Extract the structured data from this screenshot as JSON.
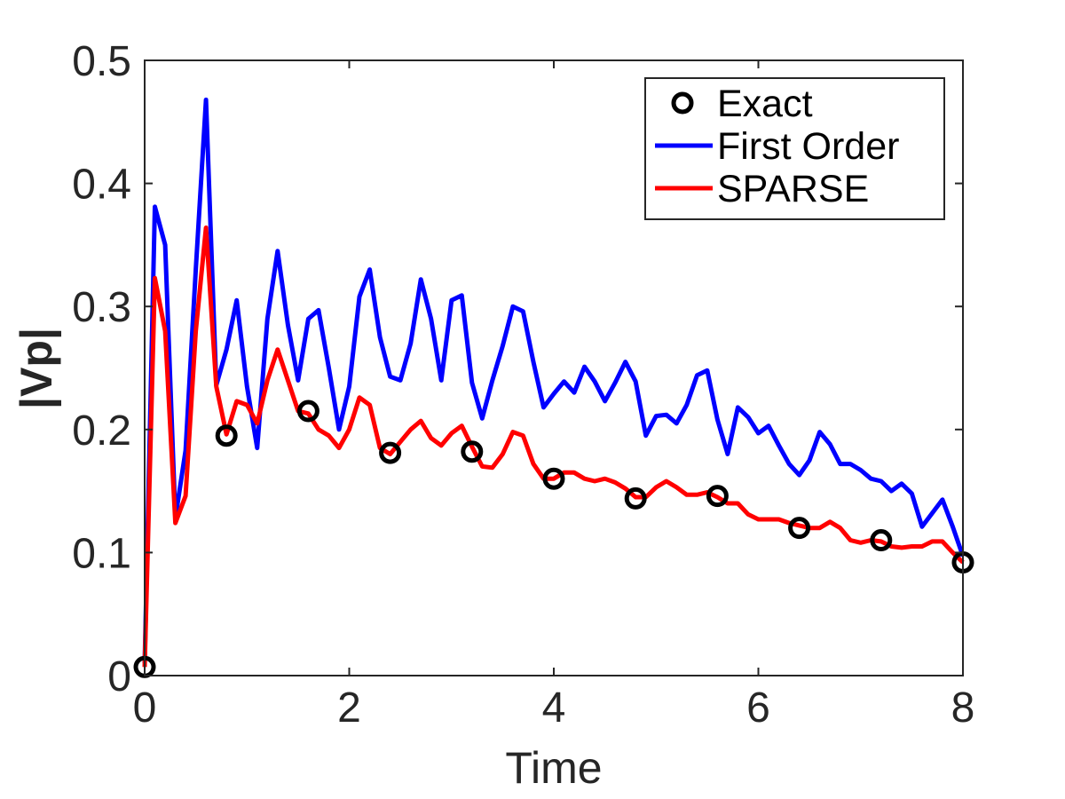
{
  "chart_data": {
    "type": "line",
    "xlabel": "Time",
    "ylabel": "|Vp|",
    "xlim": [
      0,
      8
    ],
    "ylim": [
      0,
      0.5
    ],
    "xticks": [
      0,
      2,
      4,
      6,
      8
    ],
    "yticks": [
      0,
      0.1,
      0.2,
      0.3,
      0.4,
      0.5
    ],
    "xtick_labels": [
      "0",
      "2",
      "4",
      "6",
      "8"
    ],
    "ytick_labels": [
      "0",
      "0.1",
      "0.2",
      "0.3",
      "0.4",
      "0.5"
    ],
    "grid": false,
    "legend_position": "top-right",
    "series": [
      {
        "name": "Exact",
        "style": "markers",
        "color": "#000000",
        "x": [
          0,
          0.8,
          1.6,
          2.4,
          3.2,
          4.0,
          4.8,
          5.6,
          6.4,
          7.2,
          8.0
        ],
        "y": [
          0.007,
          0.195,
          0.215,
          0.181,
          0.182,
          0.16,
          0.144,
          0.146,
          0.12,
          0.11,
          0.092
        ]
      },
      {
        "name": "First Order",
        "style": "line",
        "color": "#0000ff",
        "x": [
          0,
          0.1,
          0.2,
          0.3,
          0.4,
          0.5,
          0.6,
          0.7,
          0.8,
          0.9,
          1.0,
          1.1,
          1.2,
          1.3,
          1.4,
          1.5,
          1.6,
          1.7,
          1.8,
          1.9,
          2.0,
          2.1,
          2.2,
          2.3,
          2.4,
          2.5,
          2.6,
          2.7,
          2.8,
          2.9,
          3.0,
          3.1,
          3.2,
          3.3,
          3.4,
          3.5,
          3.6,
          3.7,
          3.8,
          3.9,
          4.0,
          4.1,
          4.2,
          4.3,
          4.4,
          4.5,
          4.6,
          4.7,
          4.8,
          4.9,
          5.0,
          5.1,
          5.2,
          5.3,
          5.4,
          5.5,
          5.6,
          5.7,
          5.8,
          5.9,
          6.0,
          6.1,
          6.2,
          6.3,
          6.4,
          6.5,
          6.6,
          6.7,
          6.8,
          6.9,
          7.0,
          7.1,
          7.2,
          7.3,
          7.4,
          7.5,
          7.6,
          7.7,
          7.8,
          7.9,
          8.0
        ],
        "y": [
          0.01,
          0.381,
          0.35,
          0.128,
          0.183,
          0.33,
          0.468,
          0.236,
          0.265,
          0.305,
          0.235,
          0.185,
          0.29,
          0.345,
          0.285,
          0.24,
          0.29,
          0.297,
          0.25,
          0.2,
          0.235,
          0.308,
          0.33,
          0.275,
          0.243,
          0.24,
          0.27,
          0.322,
          0.29,
          0.24,
          0.305,
          0.309,
          0.238,
          0.209,
          0.24,
          0.268,
          0.3,
          0.296,
          0.255,
          0.218,
          0.229,
          0.239,
          0.23,
          0.251,
          0.239,
          0.223,
          0.238,
          0.255,
          0.239,
          0.195,
          0.211,
          0.212,
          0.205,
          0.22,
          0.244,
          0.248,
          0.208,
          0.18,
          0.218,
          0.21,
          0.197,
          0.203,
          0.187,
          0.172,
          0.163,
          0.175,
          0.198,
          0.188,
          0.172,
          0.172,
          0.167,
          0.16,
          0.158,
          0.15,
          0.156,
          0.148,
          0.121,
          0.132,
          0.143,
          0.121,
          0.097
        ]
      },
      {
        "name": "SPARSE",
        "style": "line",
        "color": "#ff0000",
        "x": [
          0,
          0.1,
          0.2,
          0.3,
          0.4,
          0.5,
          0.6,
          0.7,
          0.8,
          0.9,
          1.0,
          1.1,
          1.2,
          1.3,
          1.4,
          1.5,
          1.6,
          1.7,
          1.8,
          1.9,
          2.0,
          2.1,
          2.2,
          2.3,
          2.4,
          2.5,
          2.6,
          2.7,
          2.8,
          2.9,
          3.0,
          3.1,
          3.2,
          3.3,
          3.4,
          3.5,
          3.6,
          3.7,
          3.8,
          3.9,
          4.0,
          4.1,
          4.2,
          4.3,
          4.4,
          4.5,
          4.6,
          4.7,
          4.8,
          4.9,
          5.0,
          5.1,
          5.2,
          5.3,
          5.4,
          5.5,
          5.6,
          5.7,
          5.8,
          5.9,
          6.0,
          6.1,
          6.2,
          6.3,
          6.4,
          6.5,
          6.6,
          6.7,
          6.8,
          6.9,
          7.0,
          7.1,
          7.2,
          7.3,
          7.4,
          7.5,
          7.6,
          7.7,
          7.8,
          7.9,
          8.0
        ],
        "y": [
          0.007,
          0.323,
          0.28,
          0.124,
          0.146,
          0.28,
          0.364,
          0.235,
          0.196,
          0.223,
          0.22,
          0.205,
          0.24,
          0.265,
          0.24,
          0.215,
          0.213,
          0.2,
          0.195,
          0.185,
          0.2,
          0.226,
          0.22,
          0.185,
          0.18,
          0.19,
          0.2,
          0.207,
          0.193,
          0.187,
          0.197,
          0.203,
          0.186,
          0.17,
          0.169,
          0.18,
          0.198,
          0.195,
          0.172,
          0.16,
          0.16,
          0.165,
          0.165,
          0.16,
          0.158,
          0.16,
          0.157,
          0.152,
          0.145,
          0.145,
          0.153,
          0.158,
          0.153,
          0.147,
          0.147,
          0.149,
          0.145,
          0.14,
          0.14,
          0.131,
          0.127,
          0.127,
          0.127,
          0.124,
          0.122,
          0.12,
          0.12,
          0.125,
          0.12,
          0.11,
          0.108,
          0.11,
          0.109,
          0.105,
          0.104,
          0.105,
          0.105,
          0.109,
          0.109,
          0.1,
          0.092
        ]
      }
    ]
  }
}
